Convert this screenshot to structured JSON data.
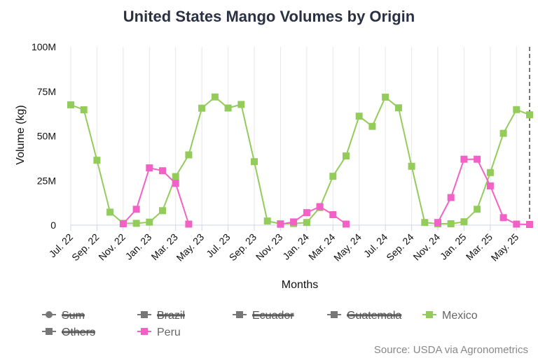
{
  "chart_data": {
    "type": "line",
    "title": "United States Mango Volumes by Origin",
    "xlabel": "Months",
    "ylabel": "Volume (kg)",
    "ylim": [
      0,
      100000000
    ],
    "y_ticks": [
      {
        "value": 0,
        "label": "0"
      },
      {
        "value": 25000000,
        "label": "25M"
      },
      {
        "value": 50000000,
        "label": "50M"
      },
      {
        "value": 75000000,
        "label": "75M"
      },
      {
        "value": 100000000,
        "label": "100M"
      }
    ],
    "x_months": [
      "Jul. 22",
      "Aug. 22",
      "Sep. 22",
      "Oct. 22",
      "Nov. 22",
      "Dec. 22",
      "Jan. 23",
      "Feb. 23",
      "Mar. 23",
      "Apr. 23",
      "May. 23",
      "Jun. 23",
      "Jul. 23",
      "Aug. 23",
      "Sep. 23",
      "Oct. 23",
      "Nov. 23",
      "Dec. 23",
      "Jan. 24",
      "Feb. 24",
      "Mar. 24",
      "Apr. 24",
      "May. 24",
      "Jun. 24",
      "Jul. 24",
      "Aug. 24",
      "Sep. 24",
      "Oct. 24",
      "Nov. 24",
      "Dec. 24",
      "Jan. 25",
      "Feb. 25",
      "Mar. 25",
      "Apr. 25",
      "May. 25",
      "Jun. 25"
    ],
    "x_tick_labels": [
      "Jul. 22",
      "Sep. 22",
      "Nov. 22",
      "Jan. 23",
      "Mar. 23",
      "May. 23",
      "Jul. 23",
      "Sep. 23",
      "Nov. 23",
      "Jan. 24",
      "Mar. 24",
      "May. 24",
      "Jul. 24",
      "Sep. 24",
      "Nov. 24",
      "Jan. 25",
      "Mar. 25",
      "May. 25"
    ],
    "grid": "vertical lines only",
    "legend_position": "bottom",
    "series": [
      {
        "name": "Mexico",
        "color": "#93cc5a",
        "visible": true,
        "values": [
          67500000,
          64700000,
          36400000,
          7300000,
          1000000,
          1000000,
          1700000,
          8100000,
          27200000,
          39400000,
          65600000,
          71900000,
          65700000,
          67700000,
          35600000,
          2300000,
          800000,
          900000,
          1500000,
          9900000,
          27400000,
          38800000,
          61100000,
          55400000,
          71800000,
          65800000,
          33000000,
          1500000,
          800000,
          800000,
          1900000,
          8900000,
          29500000,
          51500000,
          64800000,
          61900000
        ]
      },
      {
        "name": "Peru",
        "color": "#f262c6",
        "visible": true,
        "values": [
          null,
          null,
          null,
          null,
          800000,
          8900000,
          32100000,
          30500000,
          23400000,
          600000,
          null,
          null,
          null,
          null,
          null,
          null,
          500000,
          1800000,
          7000000,
          10400000,
          5900000,
          600000,
          null,
          null,
          null,
          null,
          null,
          null,
          1500000,
          15500000,
          37000000,
          37000000,
          22000000,
          4200000,
          600000,
          400000
        ]
      }
    ],
    "annotations": [
      "dashed vertical line at latest month"
    ]
  },
  "legend": {
    "items": [
      {
        "label": "Sum",
        "color": "#777777",
        "marker": "circle",
        "hidden": true
      },
      {
        "label": "Brazil",
        "color": "#777777",
        "marker": "square",
        "hidden": true
      },
      {
        "label": "Ecuador",
        "color": "#777777",
        "marker": "square",
        "hidden": true
      },
      {
        "label": "Guatemala",
        "color": "#777777",
        "marker": "square",
        "hidden": true
      },
      {
        "label": "Mexico",
        "color": "#93cc5a",
        "marker": "square",
        "hidden": false
      },
      {
        "label": "Others",
        "color": "#777777",
        "marker": "square",
        "hidden": true
      },
      {
        "label": "Peru",
        "color": "#f262c6",
        "marker": "square",
        "hidden": false
      }
    ]
  },
  "source": "Source: USDA via Agronometrics"
}
